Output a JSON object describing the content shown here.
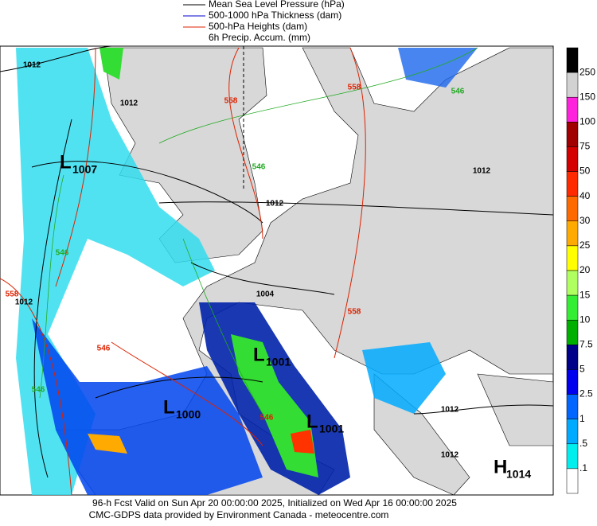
{
  "legend": [
    "Mean Sea Level Pressure (hPa)",
    "500-1000 hPa Thickness (dam)",
    "500-hPa Heights (dam)",
    "6h Precip. Accum. (mm)"
  ],
  "legend_colors": [
    "#000000",
    "#0000cc",
    "#dd2200"
  ],
  "colorbar": {
    "labels": [
      "250",
      "150",
      "100",
      "75",
      "50",
      "40",
      "30",
      "25",
      "20",
      "15",
      "10",
      "7.5",
      "5",
      "2.5",
      "1",
      ".5",
      ".1"
    ],
    "colors": [
      "#000000",
      "#d2d2d2",
      "#ff22dd",
      "#a00000",
      "#d40000",
      "#ff2a00",
      "#ff6a00",
      "#ffaa00",
      "#ffff00",
      "#b0ff60",
      "#33ee33",
      "#00b000",
      "#000088",
      "#0000ee",
      "#0066ff",
      "#00aaff",
      "#00eeee",
      "#ffffff"
    ]
  },
  "contour_labels": [
    "1012",
    "1012",
    "558",
    "546",
    "1012",
    "558",
    "1012",
    "546",
    "546",
    "558",
    "1012",
    "1004",
    "546",
    "558",
    "546",
    "546",
    "1012",
    "1012"
  ],
  "centers": [
    {
      "letter": "L",
      "value": "1007"
    },
    {
      "letter": "L",
      "value": "1001"
    },
    {
      "letter": "L",
      "value": "1000"
    },
    {
      "letter": "L",
      "value": "1001"
    },
    {
      "letter": "H",
      "value": "1014"
    }
  ],
  "footer": [
    "96-h Fcst Valid on Sun Apr 20 00:00:00 2025, Initialized on Wed Apr 16 00:00:00 2025",
    "CMC-GDPS data provided by Environment Canada - meteocentre.com"
  ]
}
